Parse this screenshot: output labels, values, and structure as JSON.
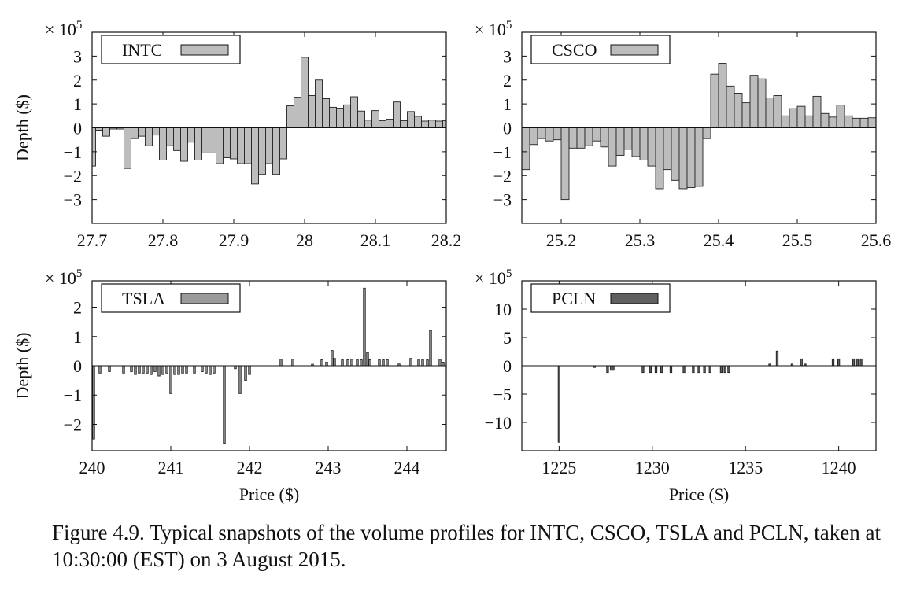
{
  "caption": "Figure 4.9.  Typical snapshots of the volume profiles for INTC, CSCO, TSLA and PCLN, taken at 10:30:00 (EST) on 3 August 2015.",
  "multiplier_prefix": "× 10",
  "multiplier_exp": "5",
  "chart_data": [
    {
      "type": "bar",
      "title": "INTC",
      "legend": "INTC",
      "legend_position": "top-left",
      "bar_color": "#bdbdbd",
      "xlabel": "",
      "ylabel": "Depth ($)",
      "xlim": [
        27.7,
        28.2
      ],
      "ylim": [
        -4,
        4
      ],
      "xticks": [
        27.7,
        27.8,
        27.9,
        28.0,
        28.1,
        28.2
      ],
      "xtick_labels": [
        "27.7",
        "27.8",
        "27.9",
        "28",
        "28.1",
        "28.2"
      ],
      "yticks": [
        -3,
        -2,
        -1,
        0,
        1,
        2,
        3
      ],
      "ytick_labels": [
        "−3",
        "−2",
        "−1",
        "0",
        "1",
        "2",
        "3"
      ],
      "bar_width": 0.01,
      "x": [
        27.7,
        27.71,
        27.72,
        27.73,
        27.74,
        27.75,
        27.76,
        27.77,
        27.78,
        27.79,
        27.8,
        27.81,
        27.82,
        27.83,
        27.84,
        27.85,
        27.86,
        27.87,
        27.88,
        27.89,
        27.9,
        27.91,
        27.92,
        27.93,
        27.94,
        27.95,
        27.96,
        27.97,
        27.98,
        27.99,
        28.0,
        28.01,
        28.02,
        28.03,
        28.04,
        28.05,
        28.06,
        28.07,
        28.08,
        28.09,
        28.1,
        28.11,
        28.12,
        28.13,
        28.14,
        28.15,
        28.16,
        28.17,
        28.18,
        28.19,
        28.2
      ],
      "values": [
        -1.6,
        -0.1,
        -0.35,
        -0.05,
        -0.05,
        -1.7,
        -0.45,
        -0.35,
        -0.75,
        -0.3,
        -1.35,
        -0.75,
        -0.95,
        -1.4,
        -0.6,
        -1.35,
        -1.05,
        -1.05,
        -1.5,
        -1.25,
        -1.3,
        -1.5,
        -1.5,
        -2.35,
        -1.95,
        -1.5,
        -1.95,
        -1.3,
        0.92,
        1.28,
        2.95,
        1.35,
        2.0,
        1.22,
        0.86,
        0.82,
        0.96,
        1.3,
        0.7,
        0.32,
        0.72,
        0.3,
        0.36,
        1.08,
        0.3,
        0.68,
        0.48,
        0.28,
        0.32,
        0.28,
        0.3
      ]
    },
    {
      "type": "bar",
      "title": "CSCO",
      "legend": "CSCO",
      "legend_position": "top-left",
      "bar_color": "#bdbdbd",
      "xlabel": "",
      "ylabel": "",
      "xlim": [
        25.15,
        25.6
      ],
      "ylim": [
        -4,
        4
      ],
      "xticks": [
        25.2,
        25.3,
        25.4,
        25.5,
        25.6
      ],
      "xtick_labels": [
        "25.2",
        "25.3",
        "25.4",
        "25.5",
        "25.6"
      ],
      "yticks": [
        -3,
        -2,
        -1,
        0,
        1,
        2,
        3
      ],
      "ytick_labels": [
        "−3",
        "−2",
        "−1",
        "0",
        "1",
        "2",
        "3"
      ],
      "bar_width": 0.01,
      "x": [
        25.155,
        25.165,
        25.175,
        25.185,
        25.195,
        25.205,
        25.215,
        25.225,
        25.235,
        25.245,
        25.255,
        25.265,
        25.275,
        25.285,
        25.295,
        25.305,
        25.315,
        25.325,
        25.335,
        25.345,
        25.355,
        25.365,
        25.375,
        25.385,
        25.395,
        25.405,
        25.415,
        25.425,
        25.435,
        25.445,
        25.455,
        25.465,
        25.475,
        25.485,
        25.495,
        25.505,
        25.515,
        25.525,
        25.535,
        25.545,
        25.555,
        25.565,
        25.575,
        25.585,
        25.595
      ],
      "values": [
        -1.75,
        -0.7,
        -0.45,
        -0.55,
        -0.5,
        -3.0,
        -0.85,
        -0.85,
        -0.75,
        -0.55,
        -0.8,
        -1.6,
        -1.15,
        -0.9,
        -1.2,
        -1.35,
        -1.6,
        -2.55,
        -1.75,
        -2.2,
        -2.55,
        -2.5,
        -2.45,
        -0.45,
        2.25,
        2.7,
        1.75,
        1.45,
        1.05,
        2.2,
        2.05,
        1.25,
        1.35,
        0.5,
        0.8,
        0.9,
        0.5,
        1.32,
        0.6,
        0.45,
        0.95,
        0.5,
        0.4,
        0.4,
        0.42
      ]
    },
    {
      "type": "bar",
      "title": "TSLA",
      "legend": "TSLA",
      "legend_position": "top-left",
      "bar_color": "#9a9a9a",
      "xlabel": "Price ($)",
      "ylabel": "Depth ($)",
      "xlim": [
        240.0,
        244.5
      ],
      "ylim": [
        -2.9,
        2.9
      ],
      "xticks": [
        240,
        241,
        242,
        243,
        244
      ],
      "xtick_labels": [
        "240",
        "241",
        "242",
        "243",
        "244"
      ],
      "yticks": [
        -2,
        -1,
        0,
        1,
        2
      ],
      "ytick_labels": [
        "−2",
        "−1",
        "0",
        "1",
        "2"
      ],
      "bar_width": 0.025,
      "x": [
        240.02,
        240.1,
        240.22,
        240.4,
        240.5,
        240.55,
        240.6,
        240.65,
        240.7,
        240.75,
        240.8,
        240.85,
        240.9,
        240.95,
        241.0,
        241.05,
        241.1,
        241.15,
        241.2,
        241.3,
        241.4,
        241.45,
        241.5,
        241.55,
        241.68,
        241.82,
        241.88,
        241.95,
        242.0,
        242.4,
        242.55,
        242.8,
        242.92,
        242.98,
        243.05,
        243.08,
        243.18,
        243.25,
        243.3,
        243.37,
        243.42,
        243.46,
        243.5,
        243.53,
        243.65,
        243.7,
        243.75,
        243.9,
        244.05,
        244.15,
        244.2,
        244.26,
        244.3,
        244.42,
        244.46
      ],
      "values": [
        -2.5,
        -0.25,
        -0.2,
        -0.25,
        -0.2,
        -0.3,
        -0.25,
        -0.25,
        -0.25,
        -0.3,
        -0.2,
        -0.35,
        -0.3,
        -0.25,
        -0.95,
        -0.3,
        -0.3,
        -0.25,
        -0.25,
        -0.25,
        -0.2,
        -0.25,
        -0.3,
        -0.25,
        -2.65,
        -0.1,
        -0.95,
        -0.5,
        -0.3,
        0.22,
        0.22,
        0.05,
        0.2,
        0.12,
        0.52,
        0.25,
        0.2,
        0.2,
        0.22,
        0.2,
        0.2,
        2.65,
        0.45,
        0.2,
        0.2,
        0.2,
        0.2,
        0.06,
        0.25,
        0.22,
        0.2,
        0.2,
        1.2,
        0.22,
        0.12
      ]
    },
    {
      "type": "bar",
      "title": "PCLN",
      "legend": "PCLN",
      "legend_position": "top-left",
      "bar_color": "#606060",
      "xlabel": "Price ($)",
      "ylabel": "",
      "xlim": [
        1223,
        1242
      ],
      "ylim": [
        -15,
        15
      ],
      "xticks": [
        1225,
        1230,
        1235,
        1240
      ],
      "xtick_labels": [
        "1225",
        "1230",
        "1235",
        "1240"
      ],
      "yticks": [
        -10,
        -5,
        0,
        5,
        10
      ],
      "ytick_labels": [
        "−10",
        "−5",
        "0",
        "5",
        "10"
      ],
      "bar_width": 0.1,
      "x": [
        1225.0,
        1226.9,
        1227.6,
        1227.8,
        1227.9,
        1229.5,
        1229.9,
        1230.2,
        1230.5,
        1231.0,
        1231.7,
        1232.2,
        1232.5,
        1232.8,
        1233.1,
        1233.7,
        1233.9,
        1234.1,
        1236.3,
        1236.7,
        1237.5,
        1238.0,
        1238.2,
        1239.7,
        1240.0,
        1240.8,
        1241.0,
        1241.2
      ],
      "values": [
        -13.5,
        -0.3,
        -1.2,
        -0.8,
        -0.8,
        -1.2,
        -1.2,
        -1.2,
        -1.2,
        -1.2,
        -1.2,
        -1.2,
        -1.2,
        -1.2,
        -1.2,
        -1.2,
        -1.2,
        -1.2,
        0.3,
        2.6,
        0.3,
        1.2,
        0.3,
        1.2,
        1.2,
        1.2,
        1.2,
        1.2
      ]
    }
  ]
}
